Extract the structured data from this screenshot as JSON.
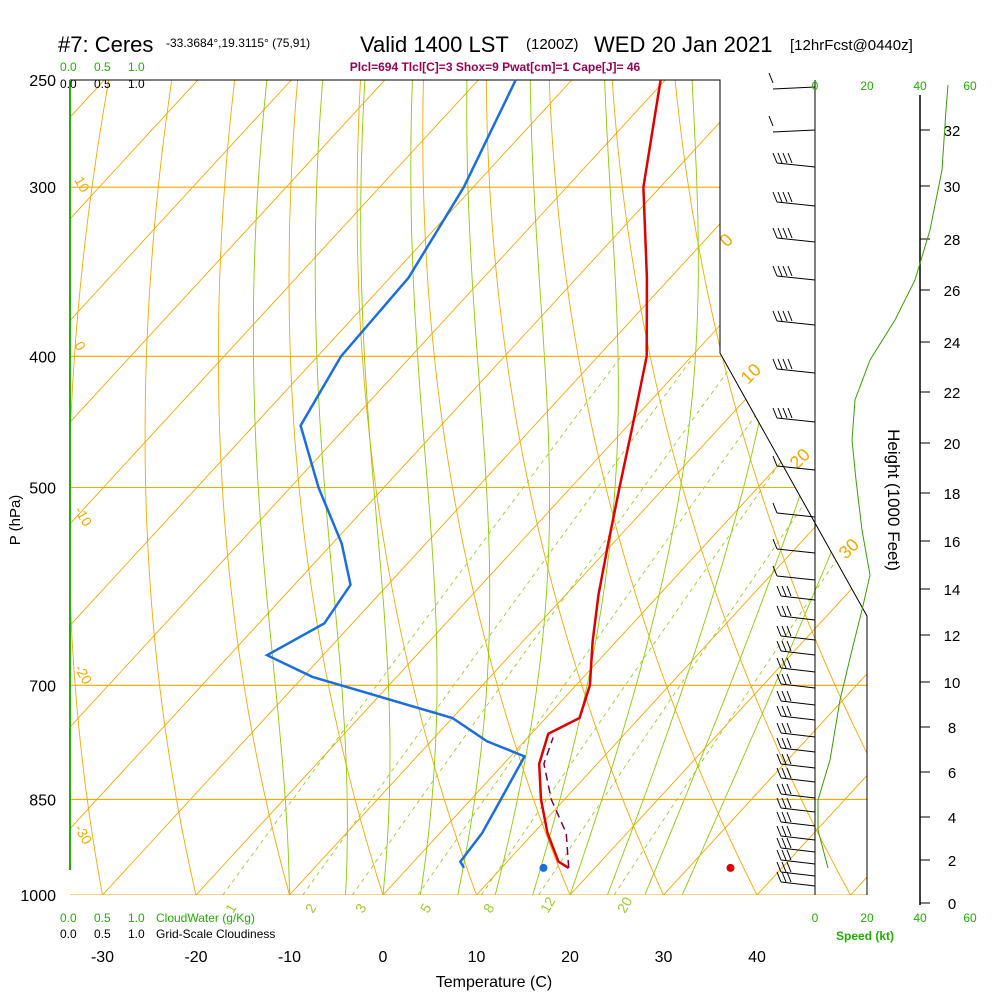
{
  "header": {
    "station": "#7: Ceres",
    "coords": "-33.3684°,19.3115° (75,91)",
    "valid": "Valid 1400 LST",
    "utc": "(1200Z)",
    "date": "WED 20 Jan 2021",
    "forecast": "[12hrFcst@0440z]",
    "indices": "Plcl=694 Tlcl[C]=3 Shox=9 Pwat[cm]=1 Cape[J]= 46"
  },
  "colors": {
    "isobar": "#f5a800",
    "isotherm": "#f5a800",
    "dry_adiabat": "#f5a800",
    "moist_adiabat": "#8ccc00",
    "mixing_ratio": "#9ccc2a",
    "temperature": "#e00000",
    "dewpoint": "#1a6ee0",
    "parcel": "#800040",
    "green_text": "#20b000",
    "indices_text": "#990055",
    "height_curve": "#3aa000"
  },
  "chart_data": {
    "type": "line",
    "title": "Skew-T Log-P sounding",
    "xlabel": "Temperature (C)",
    "ylabel": "P (hPa)",
    "right_label": "Height (1000 Feet)",
    "x_ticks": [
      "-30",
      "-20",
      "-10",
      "0",
      "10",
      "20",
      "30",
      "40"
    ],
    "pressure_ticks": [
      "250",
      "300",
      "400",
      "500",
      "700",
      "850",
      "1000"
    ],
    "height_ticks": [
      "0",
      "2",
      "4",
      "6",
      "8",
      "10",
      "12",
      "14",
      "16",
      "18",
      "20",
      "22",
      "24",
      "26",
      "28",
      "30",
      "32"
    ],
    "speed_ticks": [
      "0",
      "20",
      "40",
      "60"
    ],
    "speed_label": "Speed (kt)",
    "cloud_ticks_top_green": [
      "0.0",
      "0.5",
      "1.0"
    ],
    "cloud_ticks_top_black": [
      "0.0",
      "0.5",
      "1.0"
    ],
    "cloud_ticks_bottom_green": [
      "0.0",
      "0.5",
      "1.0"
    ],
    "cloud_ticks_bottom_black": [
      "0.0",
      "0.5",
      "1.0"
    ],
    "cloudwater_label": "CloudWater (g/Kg)",
    "cloudiness_label": "Grid-Scale Cloudiness",
    "mixing_ratio_labels": [
      "1",
      "2",
      "3",
      "5",
      "8",
      "12",
      "20"
    ],
    "isotherm_labels": [
      "10",
      "0",
      "-10",
      "-20",
      "-30"
    ],
    "moist_labels": [
      "0",
      "10",
      "20",
      "30"
    ],
    "temperature_profile": [
      [
        250,
        -50.5
      ],
      [
        300,
        -41.8
      ],
      [
        350,
        -32.5
      ],
      [
        400,
        -24.8
      ],
      [
        450,
        -19.5
      ],
      [
        500,
        -14.8
      ],
      [
        550,
        -10.5
      ],
      [
        600,
        -6.5
      ],
      [
        650,
        -2.5
      ],
      [
        700,
        1.5
      ],
      [
        740,
        3.6
      ],
      [
        760,
        1.8
      ],
      [
        800,
        3.8
      ],
      [
        850,
        7.5
      ],
      [
        900,
        11.5
      ],
      [
        945,
        15.5
      ],
      [
        955,
        17.2
      ]
    ],
    "dewpoint_profile": [
      [
        250,
        -66
      ],
      [
        300,
        -61
      ],
      [
        350,
        -58
      ],
      [
        400,
        -57.5
      ],
      [
        450,
        -55
      ],
      [
        500,
        -47
      ],
      [
        550,
        -39
      ],
      [
        590,
        -34
      ],
      [
        630,
        -33
      ],
      [
        665,
        -36
      ],
      [
        690,
        -29
      ],
      [
        740,
        -10
      ],
      [
        770,
        -4
      ],
      [
        790,
        1.5
      ],
      [
        850,
        3.2
      ],
      [
        900,
        4.5
      ],
      [
        945,
        5
      ],
      [
        955,
        6
      ]
    ],
    "parcel_profile": [
      [
        955,
        17.2
      ],
      [
        900,
        13.5
      ],
      [
        850,
        8.6
      ],
      [
        800,
        4.3
      ],
      [
        765,
        2.7
      ]
    ],
    "surface_temperature": 34.5,
    "surface_dewpoint": 14.5,
    "ylim": [
      250,
      1000
    ],
    "xlim": [
      -35,
      47
    ]
  }
}
